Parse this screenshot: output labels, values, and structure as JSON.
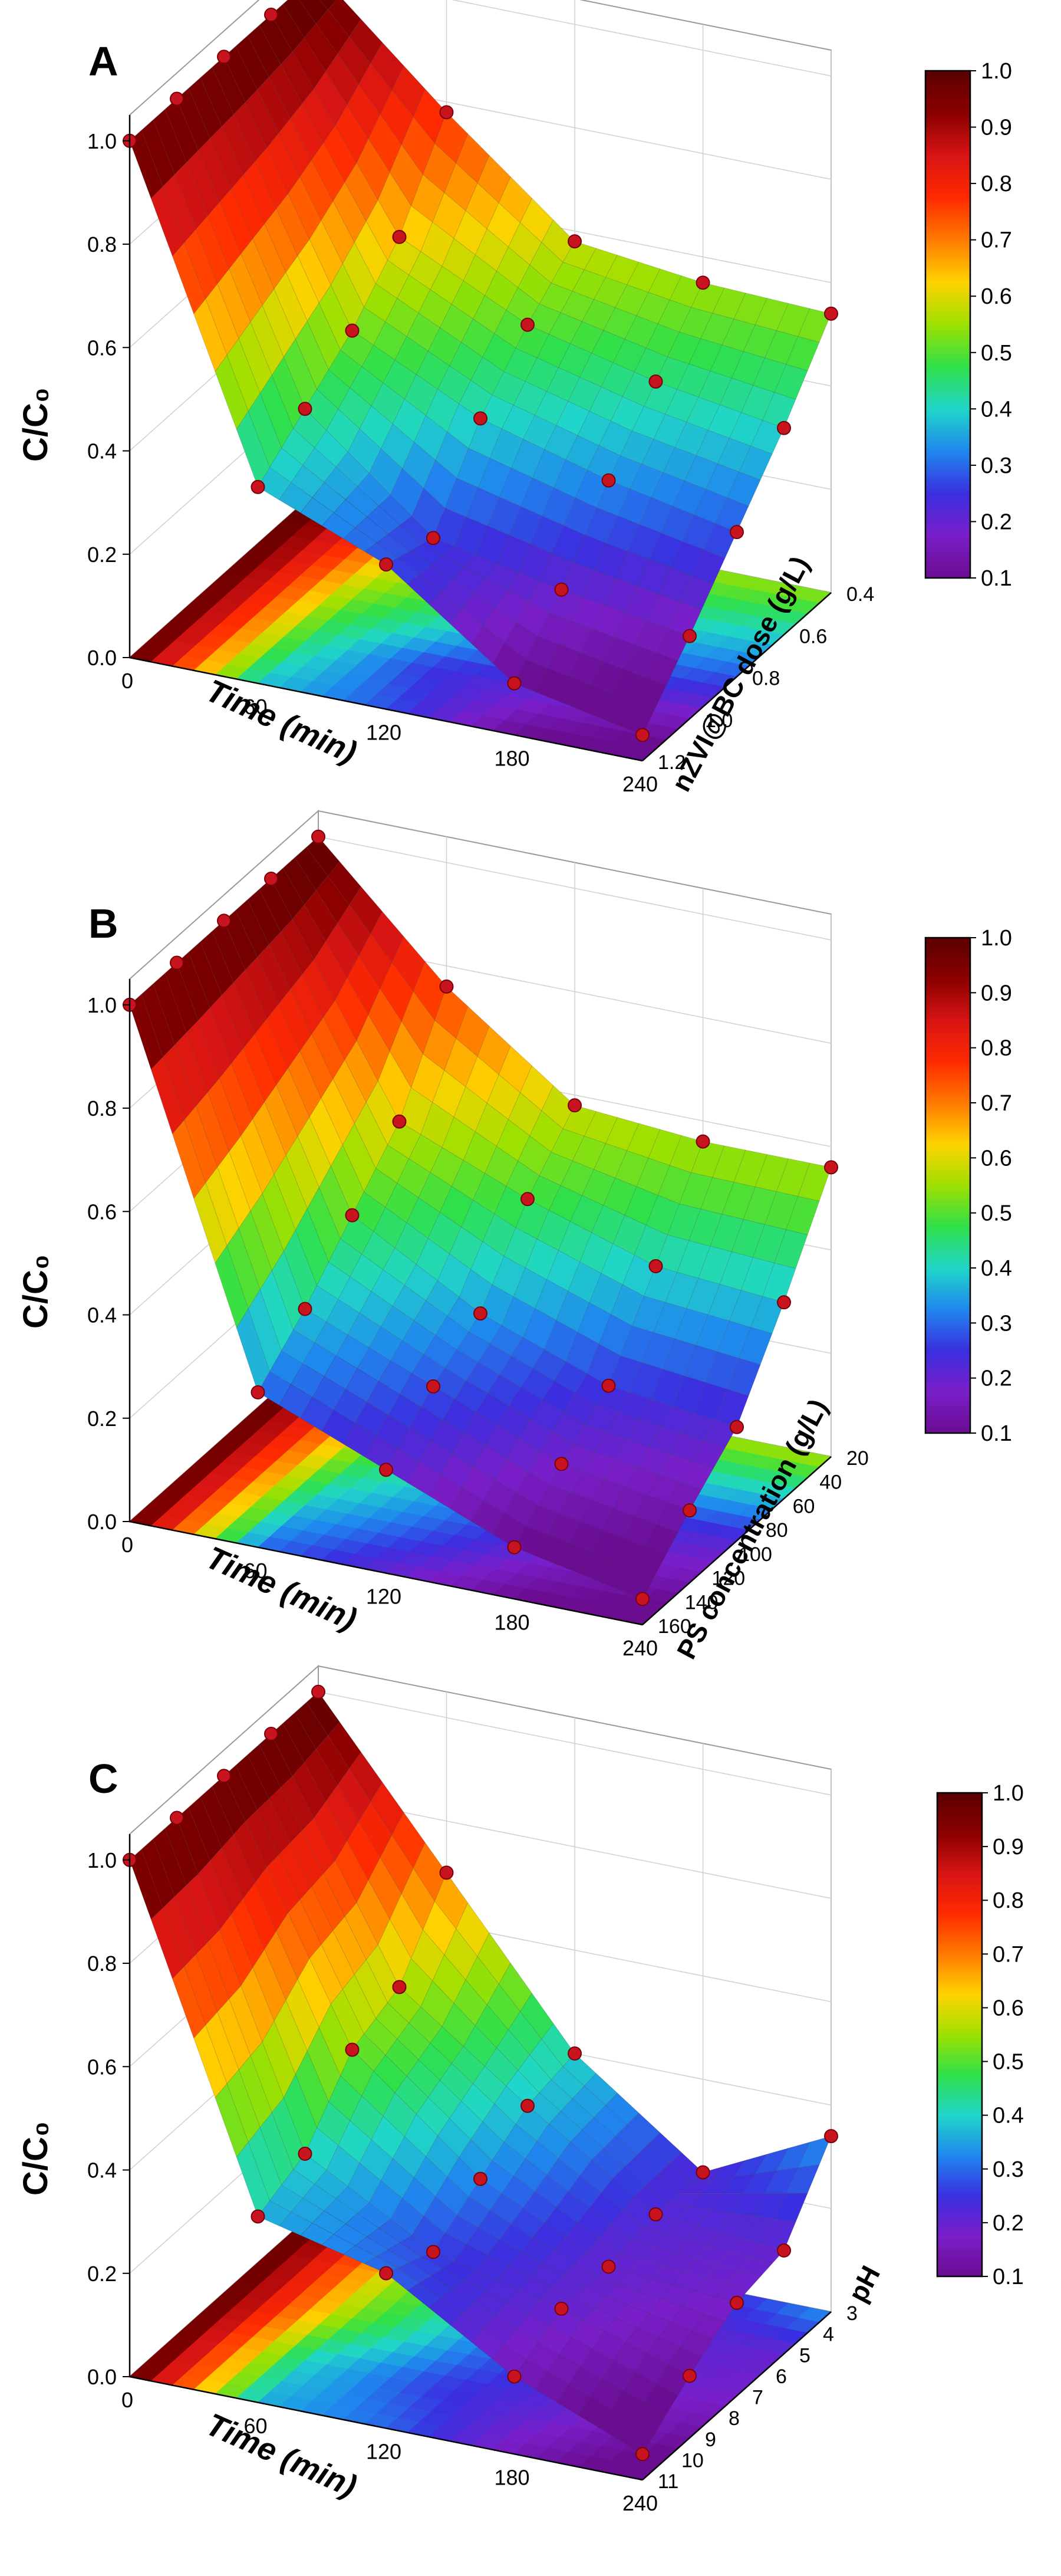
{
  "figure": {
    "panels": [
      "A",
      "B",
      "C"
    ],
    "colormap": [
      "#5a0000",
      "#8b0000",
      "#d71414",
      "#ff2a00",
      "#ff7a00",
      "#ffd200",
      "#9ee000",
      "#2fe04a",
      "#20d6c8",
      "#1f88ee",
      "#3a2fe0",
      "#7a1ec9",
      "#6a0d91"
    ]
  },
  "chart_data": [
    {
      "type": "surface3d",
      "panel": "A",
      "zlabel": "C/C₀",
      "xlabel": "Time (min)",
      "ylabel": "nZVI@BC dose (g/L)",
      "x": [
        0,
        60,
        120,
        180,
        240
      ],
      "y": [
        1.2,
        1.0,
        0.8,
        0.6,
        0.4
      ],
      "z_ticks": [
        "0.0",
        "0.2",
        "0.4",
        "0.6",
        "0.8",
        "1.0"
      ],
      "x_ticks": [
        "0",
        "60",
        "120",
        "180",
        "240"
      ],
      "y_ticks": [
        "1.2",
        "1.0",
        "0.8",
        "0.6",
        "0.4"
      ],
      "colorbar_ticks": [
        "1.0",
        "0.9",
        "0.8",
        "0.7",
        "0.6",
        "0.5",
        "0.4",
        "0.3",
        "0.2",
        "0.1"
      ],
      "colorbar_range": [
        0.1,
        1.0
      ],
      "z_range": [
        0,
        1.05
      ],
      "values": [
        [
          1.0,
          1.0,
          1.0,
          1.0,
          1.0
        ],
        [
          0.38,
          0.45,
          0.52,
          0.62,
          0.78
        ],
        [
          0.28,
          0.25,
          0.4,
          0.5,
          0.58
        ],
        [
          0.1,
          0.2,
          0.33,
          0.44,
          0.55
        ],
        [
          0.05,
          0.16,
          0.28,
          0.4,
          0.54
        ]
      ]
    },
    {
      "type": "surface3d",
      "panel": "B",
      "zlabel": "C/C₀",
      "xlabel": "Time (min)",
      "ylabel": "PS concentration (g/L)",
      "x": [
        0,
        60,
        120,
        180,
        240
      ],
      "y": [
        160,
        140,
        120,
        100,
        80,
        60,
        40,
        20
      ],
      "z_ticks": [
        "0.0",
        "0.2",
        "0.4",
        "0.6",
        "0.8",
        "1.0"
      ],
      "x_ticks": [
        "0",
        "60",
        "120",
        "180",
        "240"
      ],
      "y_ticks": [
        "160",
        "140",
        "120",
        "100",
        "80",
        "60",
        "40",
        "20"
      ],
      "colorbar_ticks": [
        "1.0",
        "0.9",
        "0.8",
        "0.7",
        "0.6",
        "0.5",
        "0.4",
        "0.3",
        "0.2",
        "0.1"
      ],
      "colorbar_range": [
        0.1,
        1.0
      ],
      "z_range": [
        0,
        1.05
      ],
      "values": [
        [
          1.0,
          1.0,
          1.0,
          1.0,
          1.0
        ],
        [
          0.3,
          0.38,
          0.48,
          0.58,
          0.76
        ],
        [
          0.2,
          0.28,
          0.34,
          0.48,
          0.58
        ],
        [
          0.1,
          0.18,
          0.25,
          0.4,
          0.56
        ],
        [
          0.05,
          0.14,
          0.22,
          0.38,
          0.56
        ]
      ]
    },
    {
      "type": "surface3d",
      "panel": "C",
      "zlabel": "C/C₀",
      "xlabel": "Time (min)",
      "ylabel": "pH",
      "x": [
        0,
        60,
        120,
        180,
        240
      ],
      "y": [
        11,
        10,
        9,
        8,
        7,
        6,
        5,
        4,
        3
      ],
      "z_ticks": [
        "0.0",
        "0.2",
        "0.4",
        "0.6",
        "0.8",
        "1.0"
      ],
      "x_ticks": [
        "0",
        "60",
        "120",
        "180",
        "240"
      ],
      "y_ticks": [
        "11",
        "10",
        "9",
        "8",
        "7",
        "6",
        "5",
        "4",
        "3"
      ],
      "colorbar_ticks": [
        "1.0",
        "0.9",
        "0.8",
        "0.7",
        "0.6",
        "0.5",
        "0.4",
        "0.3",
        "0.2",
        "0.1"
      ],
      "colorbar_range": [
        0.1,
        1.0
      ],
      "z_range": [
        0,
        1.05
      ],
      "values": [
        [
          1.0,
          1.0,
          1.0,
          1.0,
          1.0
        ],
        [
          0.36,
          0.4,
          0.52,
          0.56,
          0.7
        ],
        [
          0.3,
          0.26,
          0.32,
          0.38,
          0.4
        ],
        [
          0.15,
          0.2,
          0.2,
          0.22,
          0.22
        ],
        [
          0.05,
          0.12,
          0.18,
          0.2,
          0.34
        ]
      ]
    }
  ]
}
